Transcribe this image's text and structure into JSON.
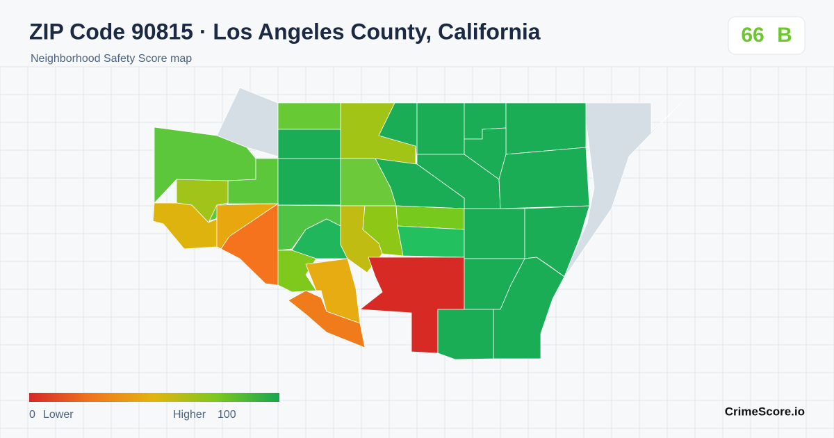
{
  "header": {
    "title": "ZIP Code 90815 · Los Angeles County, California",
    "subtitle": "Neighborhood Safety Score map"
  },
  "score": {
    "value": 66,
    "grade": "B"
  },
  "legend": {
    "min": 0,
    "min_label": "Lower",
    "max_label": "Higher",
    "max": 100
  },
  "brand": "CrimeScore.io"
}
